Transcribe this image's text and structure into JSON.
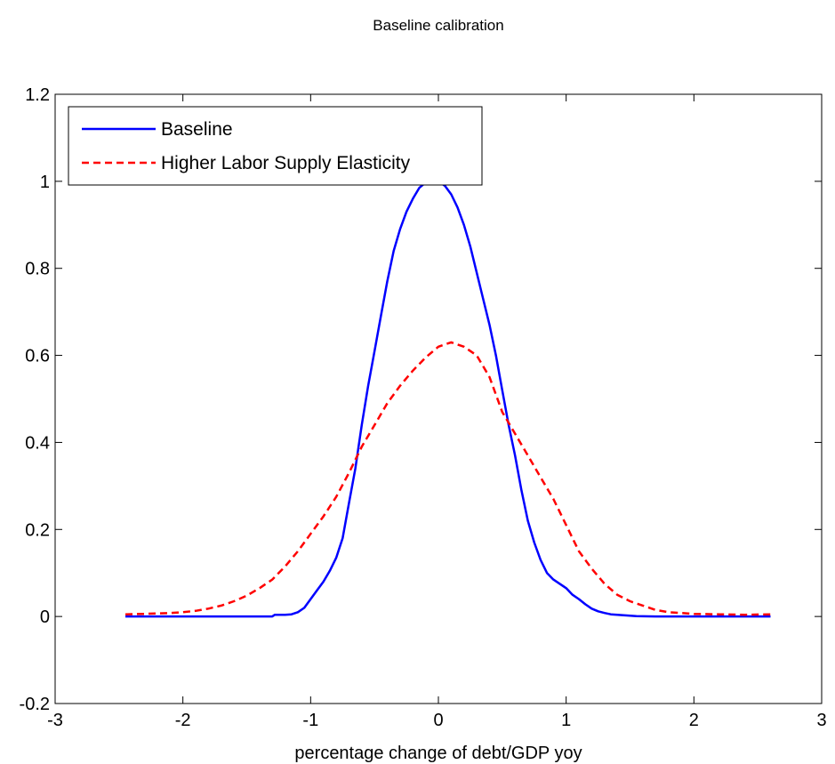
{
  "chart_data": {
    "type": "line",
    "title": "Baseline calibration",
    "xlabel": "percentage change of debt/GDP yoy",
    "ylabel": "",
    "xlim": [
      -3,
      3
    ],
    "ylim": [
      -0.2,
      1.2
    ],
    "xticks": [
      -3,
      -2,
      -1,
      0,
      1,
      2,
      3
    ],
    "xtick_labels": [
      "-3",
      "-2",
      "-1",
      "0",
      "1",
      "2",
      "3"
    ],
    "yticks": [
      -0.2,
      0,
      0.2,
      0.4,
      0.6,
      0.8,
      1,
      1.2
    ],
    "ytick_labels": [
      "-0.2",
      "0",
      "0.2",
      "0.4",
      "0.6",
      "0.8",
      "1",
      "1.2"
    ],
    "grid": false,
    "legend_position": "top-left",
    "series": [
      {
        "name": "Baseline",
        "color": "#0000ff",
        "style": "solid",
        "points": [
          [
            -2.45,
            0.0
          ],
          [
            -2.0,
            0.0
          ],
          [
            -1.6,
            0.0
          ],
          [
            -1.4,
            0.0
          ],
          [
            -1.3,
            0.0
          ],
          [
            -1.28,
            0.004
          ],
          [
            -1.2,
            0.004
          ],
          [
            -1.15,
            0.005
          ],
          [
            -1.1,
            0.01
          ],
          [
            -1.05,
            0.02
          ],
          [
            -1.0,
            0.04
          ],
          [
            -0.95,
            0.06
          ],
          [
            -0.9,
            0.08
          ],
          [
            -0.85,
            0.105
          ],
          [
            -0.8,
            0.135
          ],
          [
            -0.75,
            0.18
          ],
          [
            -0.7,
            0.26
          ],
          [
            -0.65,
            0.34
          ],
          [
            -0.6,
            0.44
          ],
          [
            -0.55,
            0.53
          ],
          [
            -0.5,
            0.61
          ],
          [
            -0.45,
            0.69
          ],
          [
            -0.4,
            0.77
          ],
          [
            -0.35,
            0.84
          ],
          [
            -0.3,
            0.89
          ],
          [
            -0.25,
            0.93
          ],
          [
            -0.2,
            0.96
          ],
          [
            -0.15,
            0.985
          ],
          [
            -0.1,
            0.997
          ],
          [
            -0.05,
            1.0
          ],
          [
            0.0,
            1.0
          ],
          [
            0.05,
            0.99
          ],
          [
            0.1,
            0.97
          ],
          [
            0.15,
            0.94
          ],
          [
            0.2,
            0.9
          ],
          [
            0.25,
            0.85
          ],
          [
            0.3,
            0.79
          ],
          [
            0.35,
            0.73
          ],
          [
            0.4,
            0.67
          ],
          [
            0.45,
            0.6
          ],
          [
            0.5,
            0.52
          ],
          [
            0.55,
            0.44
          ],
          [
            0.6,
            0.37
          ],
          [
            0.65,
            0.29
          ],
          [
            0.7,
            0.22
          ],
          [
            0.75,
            0.17
          ],
          [
            0.8,
            0.13
          ],
          [
            0.85,
            0.1
          ],
          [
            0.9,
            0.085
          ],
          [
            0.95,
            0.075
          ],
          [
            1.0,
            0.065
          ],
          [
            1.05,
            0.05
          ],
          [
            1.1,
            0.04
          ],
          [
            1.15,
            0.028
          ],
          [
            1.2,
            0.018
          ],
          [
            1.25,
            0.012
          ],
          [
            1.3,
            0.008
          ],
          [
            1.35,
            0.005
          ],
          [
            1.45,
            0.003
          ],
          [
            1.55,
            0.001
          ],
          [
            1.7,
            0.0
          ],
          [
            2.0,
            0.0
          ],
          [
            2.3,
            0.0
          ],
          [
            2.6,
            0.0
          ]
        ]
      },
      {
        "name": "Higher Labor Supply Elasticity",
        "color": "#ff0000",
        "style": "dashed",
        "points": [
          [
            -2.45,
            0.005
          ],
          [
            -2.3,
            0.006
          ],
          [
            -2.2,
            0.007
          ],
          [
            -2.1,
            0.008
          ],
          [
            -2.0,
            0.01
          ],
          [
            -1.9,
            0.013
          ],
          [
            -1.8,
            0.018
          ],
          [
            -1.7,
            0.025
          ],
          [
            -1.6,
            0.035
          ],
          [
            -1.5,
            0.048
          ],
          [
            -1.4,
            0.065
          ],
          [
            -1.3,
            0.085
          ],
          [
            -1.2,
            0.115
          ],
          [
            -1.1,
            0.15
          ],
          [
            -1.0,
            0.19
          ],
          [
            -0.9,
            0.23
          ],
          [
            -0.8,
            0.275
          ],
          [
            -0.7,
            0.33
          ],
          [
            -0.6,
            0.39
          ],
          [
            -0.5,
            0.44
          ],
          [
            -0.4,
            0.49
          ],
          [
            -0.3,
            0.53
          ],
          [
            -0.2,
            0.565
          ],
          [
            -0.1,
            0.595
          ],
          [
            0.0,
            0.62
          ],
          [
            0.1,
            0.63
          ],
          [
            0.2,
            0.62
          ],
          [
            0.3,
            0.6
          ],
          [
            0.4,
            0.55
          ],
          [
            0.5,
            0.47
          ],
          [
            0.6,
            0.42
          ],
          [
            0.7,
            0.37
          ],
          [
            0.8,
            0.32
          ],
          [
            0.9,
            0.27
          ],
          [
            1.0,
            0.21
          ],
          [
            1.1,
            0.15
          ],
          [
            1.2,
            0.11
          ],
          [
            1.3,
            0.075
          ],
          [
            1.4,
            0.05
          ],
          [
            1.5,
            0.035
          ],
          [
            1.6,
            0.025
          ],
          [
            1.7,
            0.015
          ],
          [
            1.8,
            0.01
          ],
          [
            1.9,
            0.008
          ],
          [
            2.0,
            0.006
          ],
          [
            2.2,
            0.005
          ],
          [
            2.4,
            0.004
          ],
          [
            2.6,
            0.005
          ]
        ]
      }
    ]
  }
}
